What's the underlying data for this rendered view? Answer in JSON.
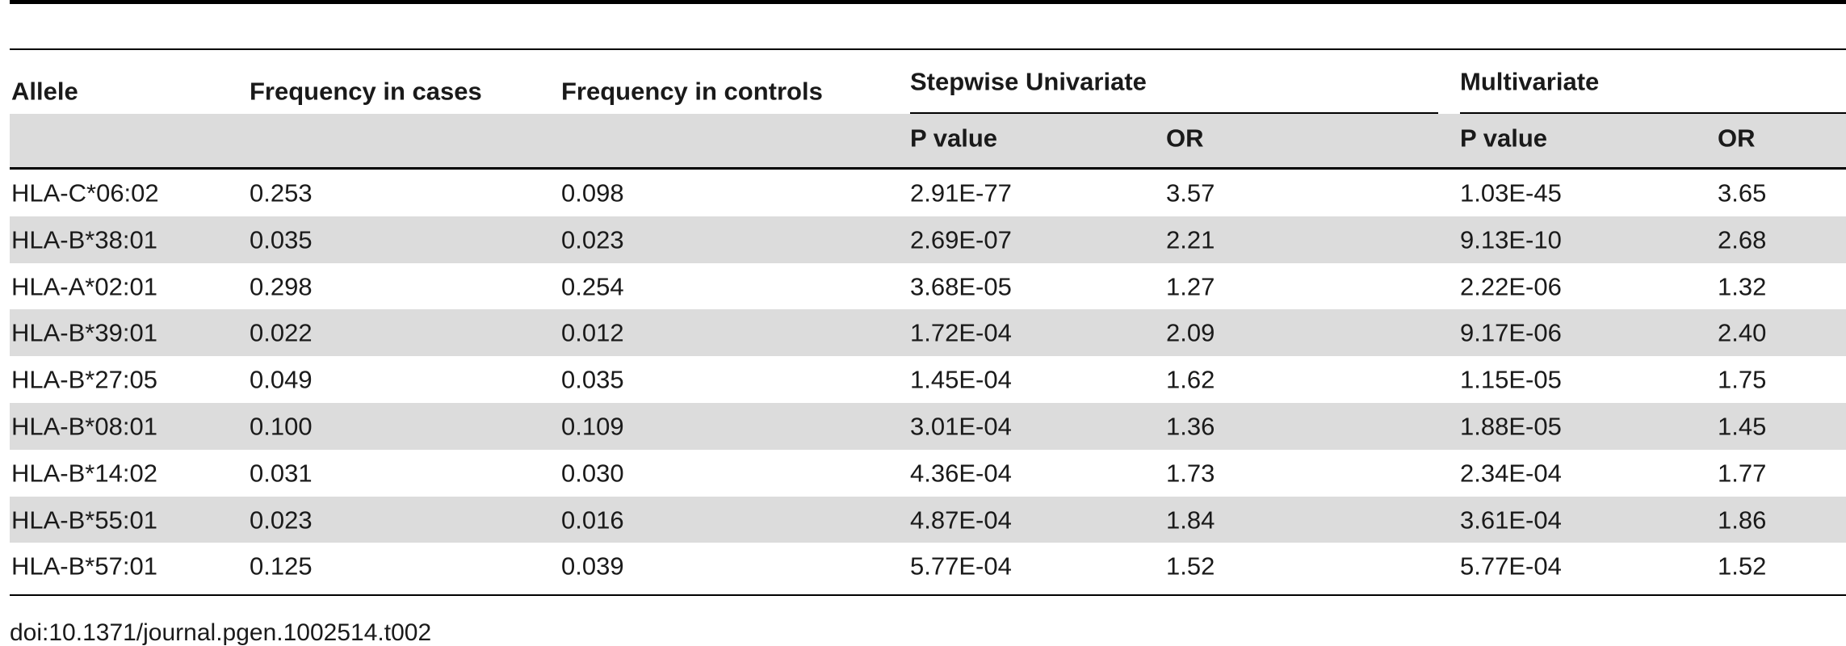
{
  "table": {
    "columns": {
      "allele": "Allele",
      "freq_cases": "Frequency in cases",
      "freq_controls": "Frequency in controls",
      "stepwise": "Stepwise Univariate",
      "multivariate": "Multivariate",
      "p_value": "P value",
      "or": "OR"
    },
    "rows": [
      [
        "HLA-C*06:02",
        "0.253",
        "0.098",
        "2.91E-77",
        "3.57",
        "1.03E-45",
        "3.65"
      ],
      [
        "HLA-B*38:01",
        "0.035",
        "0.023",
        "2.69E-07",
        "2.21",
        "9.13E-10",
        "2.68"
      ],
      [
        "HLA-A*02:01",
        "0.298",
        "0.254",
        "3.68E-05",
        "1.27",
        "2.22E-06",
        "1.32"
      ],
      [
        "HLA-B*39:01",
        "0.022",
        "0.012",
        "1.72E-04",
        "2.09",
        "9.17E-06",
        "2.40"
      ],
      [
        "HLA-B*27:05",
        "0.049",
        "0.035",
        "1.45E-04",
        "1.62",
        "1.15E-05",
        "1.75"
      ],
      [
        "HLA-B*08:01",
        "0.100",
        "0.109",
        "3.01E-04",
        "1.36",
        "1.88E-05",
        "1.45"
      ],
      [
        "HLA-B*14:02",
        "0.031",
        "0.030",
        "4.36E-04",
        "1.73",
        "2.34E-04",
        "1.77"
      ],
      [
        "HLA-B*55:01",
        "0.023",
        "0.016",
        "4.87E-04",
        "1.84",
        "3.61E-04",
        "1.86"
      ],
      [
        "HLA-B*57:01",
        "0.125",
        "0.039",
        "5.77E-04",
        "1.52",
        "5.77E-04",
        "1.52"
      ]
    ],
    "caption": "doi:10.1371/journal.pgen.1002514.t002"
  }
}
